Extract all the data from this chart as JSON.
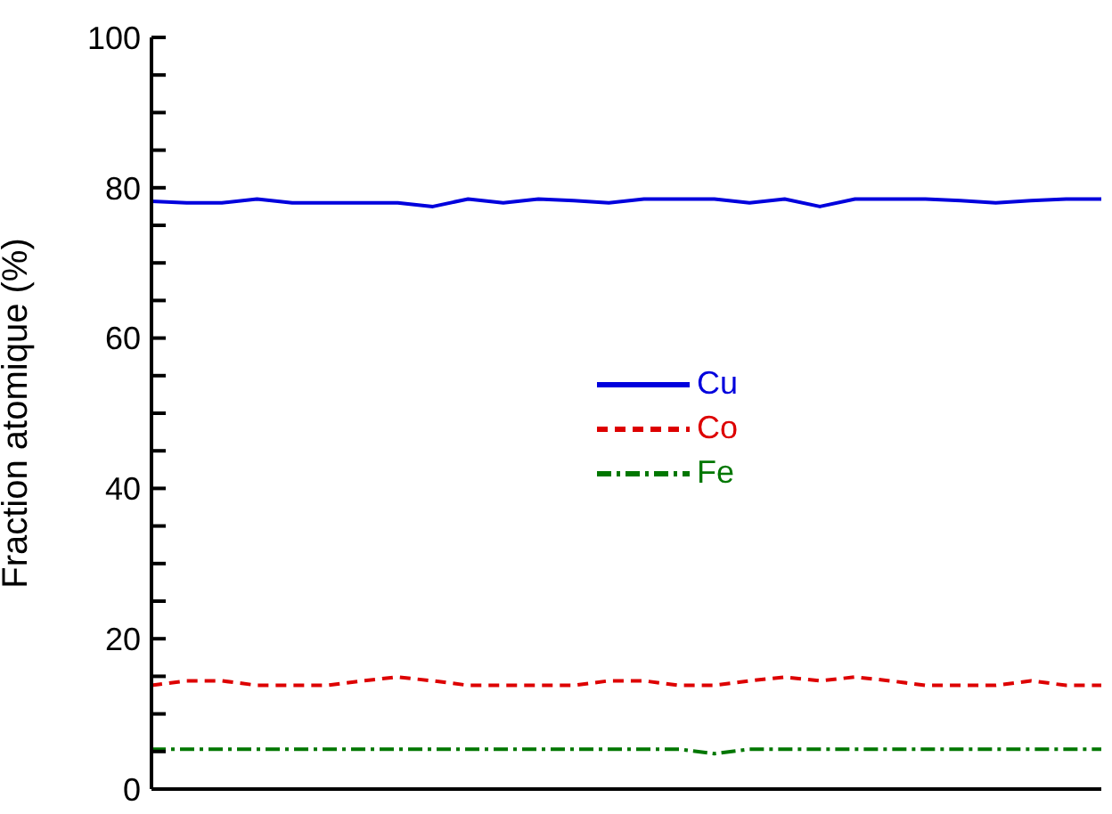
{
  "chart_data": {
    "type": "line",
    "ylabel": "Fraction atomique (%)",
    "categories": [
      null,
      null,
      null,
      null,
      null,
      null,
      null,
      null,
      null,
      null,
      null,
      null,
      null,
      null,
      null,
      null,
      null,
      null,
      null,
      null,
      null,
      null,
      null,
      null,
      null,
      null,
      null,
      null
    ],
    "series": [
      {
        "name": "Cu",
        "color": "#0000dd",
        "line_style": "solid",
        "values": [
          78.2,
          78,
          78,
          78.5,
          78,
          78,
          78,
          78,
          77.5,
          78.5,
          78,
          78.5,
          78.3,
          78,
          78.5,
          78.5,
          78.5,
          78,
          78.5,
          77.5,
          78.5,
          78.5,
          78.5,
          78.3,
          78,
          78.3,
          78.5,
          78.5
        ]
      },
      {
        "name": "Co",
        "color": "#dd0000",
        "line_style": "dashed",
        "values": [
          13.8,
          14.4,
          14.4,
          13.8,
          13.8,
          13.8,
          14.4,
          14.9,
          14.4,
          13.8,
          13.8,
          13.8,
          13.8,
          14.4,
          14.4,
          13.8,
          13.8,
          14.4,
          14.9,
          14.4,
          14.9,
          14.4,
          13.8,
          13.8,
          13.8,
          14.4,
          13.8,
          13.8
        ]
      },
      {
        "name": "Fe",
        "color": "#007700",
        "line_style": "dashdot",
        "values": [
          5.3,
          5.3,
          5.3,
          5.3,
          5.3,
          5.3,
          5.3,
          5.3,
          5.3,
          5.3,
          5.3,
          5.3,
          5.3,
          5.3,
          5.3,
          5.3,
          4.7,
          5.3,
          5.3,
          5.3,
          5.3,
          5.3,
          5.3,
          5.3,
          5.3,
          5.3,
          5.3,
          5.3
        ]
      }
    ],
    "ylim": [
      0,
      100
    ],
    "yticks": [
      0,
      {
        "value": 5,
        "label": null
      },
      {
        "value": 10,
        "label": null
      },
      {
        "value": 15,
        "label": null
      },
      20,
      {
        "value": 25,
        "label": null
      },
      {
        "value": 30,
        "label": null
      },
      {
        "value": 35,
        "label": null
      },
      40,
      {
        "value": 45,
        "label": null
      },
      {
        "value": 50,
        "label": null
      },
      {
        "value": 55,
        "label": null
      },
      60,
      {
        "value": 65,
        "label": null
      },
      {
        "value": 70,
        "label": null
      },
      {
        "value": 75,
        "label": null
      },
      80,
      {
        "value": 85,
        "label": null
      },
      {
        "value": 90,
        "label": null
      },
      {
        "value": 95,
        "label": null
      },
      100
    ],
    "grid": false,
    "legend": "center",
    "marker": "none",
    "tick_labels": "y"
  }
}
